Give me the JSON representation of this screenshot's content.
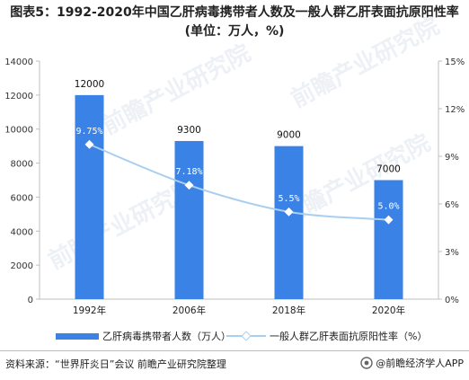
{
  "title": "图表5：1992-2020年中国乙肝病毒携带者人数及一般人群乙肝表面抗原阳性率(单位：万人，%)",
  "watermark": "前瞻产业研究院",
  "chart_data": {
    "type": "bar",
    "categories": [
      "1992年",
      "2006年",
      "2018年",
      "2020年"
    ],
    "series": [
      {
        "name": "乙肝病毒携带者人数（万人）",
        "kind": "bar",
        "axis": "left",
        "values": [
          12000,
          9300,
          9000,
          7000
        ],
        "labels": [
          "12000",
          "9300",
          "9000",
          "7000"
        ],
        "color": "#3b82e6"
      },
      {
        "name": "一般人群乙肝表面抗原阳性率（%）",
        "kind": "line",
        "axis": "right",
        "values": [
          9.75,
          7.18,
          5.5,
          5.0
        ],
        "labels": [
          "9.75%",
          "7.18%",
          "5.5%",
          "5.0%"
        ],
        "color": "#a8cff0"
      }
    ],
    "left_axis": {
      "ylim": [
        0,
        14000
      ],
      "ticks": [
        "0",
        "2000",
        "4000",
        "6000",
        "8000",
        "10000",
        "12000",
        "14000"
      ]
    },
    "right_axis": {
      "ylim": [
        0,
        15
      ],
      "ticks": [
        "0%",
        "3%",
        "6%",
        "9%",
        "12%",
        "15%"
      ]
    },
    "grid": false,
    "legend_position": "bottom"
  },
  "source": "资料来源：“世界肝炎日”会议 前瞻产业研究院整理",
  "brand": "@前瞻经济学人APP"
}
